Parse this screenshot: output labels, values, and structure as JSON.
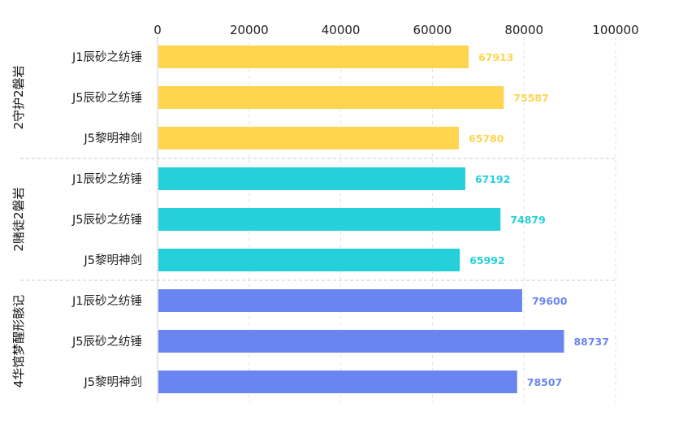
{
  "chart_data": {
    "type": "bar",
    "orientation": "horizontal",
    "title": "",
    "xlabel": "",
    "ylabel": "",
    "xlim": [
      0,
      100000
    ],
    "x_ticks": [
      "0",
      "20000",
      "40000",
      "60000",
      "80000",
      "100000"
    ],
    "x_tick_values": [
      0,
      20000,
      40000,
      60000,
      80000,
      100000
    ],
    "grid": true,
    "legend": "none",
    "groups": [
      {
        "name": "2守护2磐岩",
        "color": "#FFD54F",
        "categories": [
          "J1辰砂之纺锤",
          "J5辰砂之纺锤",
          "J5黎明神剑"
        ],
        "values": [
          67913,
          75587,
          65780
        ]
      },
      {
        "name": "2赌徒2磐岩",
        "color": "#26D0DA",
        "categories": [
          "J1辰砂之纺锤",
          "J5辰砂之纺锤",
          "J5黎明神剑"
        ],
        "values": [
          67192,
          74879,
          65992
        ]
      },
      {
        "name": "4华馆梦醒形骸记",
        "color": "#6B85F0",
        "categories": [
          "J1辰砂之纺锤",
          "J5辰砂之纺锤",
          "J5黎明神剑"
        ],
        "values": [
          79600,
          88737,
          78507
        ]
      }
    ]
  }
}
